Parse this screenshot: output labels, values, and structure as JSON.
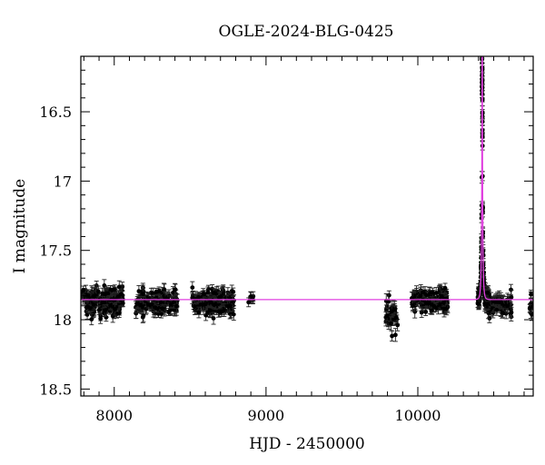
{
  "chart_data": {
    "type": "scatter",
    "title": "OGLE-2024-BLG-0425",
    "xlabel": "HJD - 2450000",
    "ylabel": "I magnitude",
    "xlim": [
      7780,
      10760
    ],
    "ylim": [
      18.55,
      16.1
    ],
    "y_inverted": true,
    "grid": false,
    "x_ticks": [
      8000,
      9000,
      10000
    ],
    "x_tick_labels": [
      "8000",
      "9000",
      "10000"
    ],
    "y_ticks": [
      16.5,
      17,
      17.5,
      18,
      18.5
    ],
    "y_tick_labels": [
      "16.5",
      "17",
      "17.5",
      "18",
      "18.5"
    ],
    "series": [
      {
        "kind": "points_with_errorbars",
        "color": "#000000",
        "segments": [
          {
            "x_start": 7790,
            "x_end": 8060,
            "n": 180,
            "mag": 17.87,
            "spread": 0.08,
            "err": 0.035
          },
          {
            "x_start": 8140,
            "x_end": 8420,
            "n": 150,
            "mag": 17.87,
            "spread": 0.07,
            "err": 0.035
          },
          {
            "x_start": 8510,
            "x_end": 8790,
            "n": 160,
            "mag": 17.87,
            "spread": 0.08,
            "err": 0.035
          },
          {
            "x_start": 8880,
            "x_end": 8920,
            "n": 8,
            "mag": 17.85,
            "spread": 0.04,
            "err": 0.03
          },
          {
            "x_start": 9785,
            "x_end": 9870,
            "n": 40,
            "mag": 17.95,
            "spread": 0.1,
            "err": 0.04
          },
          {
            "x_start": 9960,
            "x_end": 10200,
            "n": 140,
            "mag": 17.86,
            "spread": 0.07,
            "err": 0.035
          },
          {
            "x_start": 10470,
            "x_end": 10620,
            "n": 70,
            "mag": 17.9,
            "spread": 0.07,
            "err": 0.04
          },
          {
            "x_start": 10730,
            "x_end": 10760,
            "n": 10,
            "mag": 17.9,
            "spread": 0.05,
            "err": 0.035
          }
        ],
        "event": {
          "x_start": 10395,
          "x_end": 10470,
          "n": 150
        }
      },
      {
        "kind": "model_curve",
        "color": "#e040e0",
        "baseline": 17.855,
        "t0": 10424,
        "u0": 0.0296,
        "tE": 8,
        "blend_fraction": 0.6,
        "peak": 16.49
      }
    ]
  }
}
